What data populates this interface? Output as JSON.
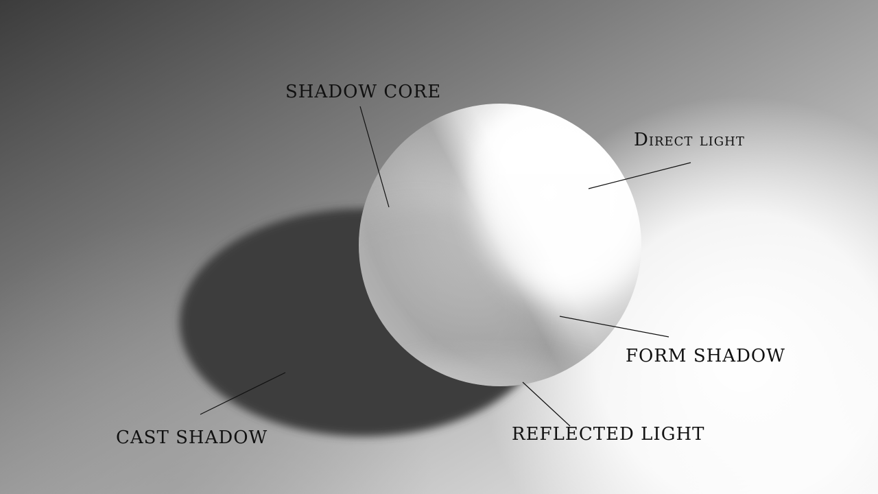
{
  "diagram": {
    "labels": {
      "shadow_core": "SHADOW CORE",
      "direct_light": "Direct light",
      "form_shadow": "FORM SHADOW",
      "reflected_light": "REFLECTED LIGHT",
      "cast_shadow": "CAST SHADOW"
    }
  }
}
